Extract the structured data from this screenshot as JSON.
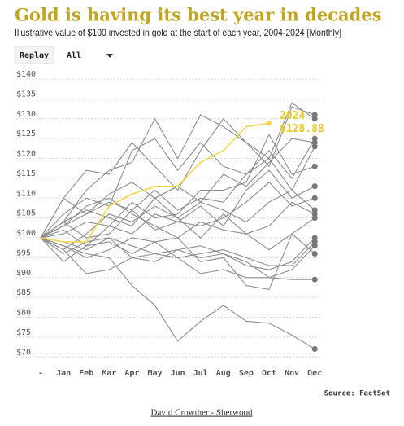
{
  "chart_data": {
    "type": "line",
    "title": "Gold is having its best year in decades",
    "subtitle": "Illustrative value of $100 invested in gold at the start of each year, 2004-2024 [Monthly]",
    "categories": [
      "-",
      "Jan",
      "Feb",
      "Mar",
      "Apr",
      "May",
      "Jun",
      "Jul",
      "Aug",
      "Sep",
      "Oct",
      "Nov",
      "Dec"
    ],
    "ylim": [
      68,
      142
    ],
    "yticks": [
      {
        "value": 70,
        "label": "$70"
      },
      {
        "value": 75,
        "label": "$75"
      },
      {
        "value": 80,
        "label": "$80"
      },
      {
        "value": 85,
        "label": "$85"
      },
      {
        "value": 90,
        "label": "$90"
      },
      {
        "value": 95,
        "label": "$95"
      },
      {
        "value": 100,
        "label": "$100"
      },
      {
        "value": 105,
        "label": "$105"
      },
      {
        "value": 110,
        "label": "$110"
      },
      {
        "value": 115,
        "label": "$115"
      },
      {
        "value": 120,
        "label": "$120"
      },
      {
        "value": 125,
        "label": "$125"
      },
      {
        "value": 130,
        "label": "$130"
      },
      {
        "value": 135,
        "label": "$135"
      },
      {
        "value": 140,
        "label": "$140"
      }
    ],
    "grid": true,
    "series": [
      {
        "color": "#8c8c8c",
        "values": [
          100,
          110,
          117,
          116,
          124,
          118,
          112,
          122,
          130,
          124,
          120,
          134,
          130
        ]
      },
      {
        "color": "#8c8c8c",
        "values": [
          100,
          104,
          112,
          117,
          119,
          130,
          120,
          131,
          128,
          124,
          118,
          133,
          131
        ]
      },
      {
        "color": "#8c8c8c",
        "values": [
          100,
          106,
          110,
          108,
          122,
          125,
          117,
          124,
          118,
          116,
          122,
          115,
          125
        ]
      },
      {
        "color": "#8c8c8c",
        "values": [
          100,
          103,
          106,
          111,
          114,
          110,
          113,
          109,
          116,
          113,
          119,
          125,
          124
        ]
      },
      {
        "color": "#8c8c8c",
        "values": [
          100,
          110,
          106,
          109,
          107,
          112,
          107,
          110,
          109,
          116,
          120,
          112,
          123
        ]
      },
      {
        "color": "#8c8c8c",
        "values": [
          100,
          101,
          104,
          103,
          109,
          105,
          106,
          112,
          112,
          114,
          126,
          116,
          118
        ]
      },
      {
        "color": "#8c8c8c",
        "values": [
          100,
          104,
          100,
          101,
          107,
          102,
          104,
          108,
          103,
          112,
          117,
          110,
          113
        ]
      },
      {
        "color": "#8c8c8c",
        "values": [
          100,
          102,
          98,
          103,
          101,
          106,
          104,
          103,
          105,
          109,
          114,
          108,
          110
        ]
      },
      {
        "color": "#8c8c8c",
        "values": [
          100,
          97,
          101,
          106,
          104,
          108,
          105,
          109,
          107,
          104,
          109,
          112,
          107
        ]
      },
      {
        "color": "#8c8c8c",
        "values": [
          100,
          104,
          107,
          105,
          103,
          110,
          105,
          100,
          106,
          101,
          103,
          109,
          106
        ]
      },
      {
        "color": "#8c8c8c",
        "values": [
          100,
          103,
          108,
          110,
          106,
          103,
          100,
          104,
          102,
          101,
          97,
          101,
          105
        ]
      },
      {
        "color": "#8c8c8c",
        "values": [
          100,
          96,
          99,
          100,
          98,
          96,
          97,
          95,
          96,
          93,
          92,
          94,
          100
        ]
      },
      {
        "color": "#8c8c8c",
        "values": [
          100,
          98,
          95,
          97,
          100,
          99,
          95,
          96,
          97,
          95,
          93,
          93,
          99
        ]
      },
      {
        "color": "#8c8c8c",
        "values": [
          100,
          99,
          97,
          100,
          95,
          94,
          97,
          98,
          96,
          94,
          90,
          92,
          98
        ]
      },
      {
        "color": "#8c8c8c",
        "values": [
          100,
          94,
          98,
          99,
          96,
          99,
          100,
          94,
          95,
          88,
          87,
          101,
          96
        ]
      },
      {
        "color": "#8c8c8c",
        "values": [
          100,
          97,
          91,
          92,
          95,
          96,
          95,
          91,
          92,
          90,
          90,
          89.5,
          89.5
        ]
      },
      {
        "color": "#8c8c8c",
        "values": [
          100,
          98,
          96,
          95,
          88,
          83,
          74,
          79,
          83,
          79,
          78.5,
          75.5,
          72
        ]
      },
      {
        "name": "2024",
        "color": "#f2d64b",
        "values": [
          100,
          99,
          99,
          108,
          111,
          113,
          113,
          119,
          122,
          128,
          128.88,
          null,
          null
        ],
        "value_labels": [
          null,
          null,
          null,
          null,
          null,
          null,
          null,
          null,
          null,
          null,
          "$128.88",
          null,
          null
        ]
      }
    ],
    "source": "Source: FactSet"
  },
  "controls": {
    "replay": "Replay",
    "filter": "All"
  },
  "credit": "David Crowther - Sherwood"
}
